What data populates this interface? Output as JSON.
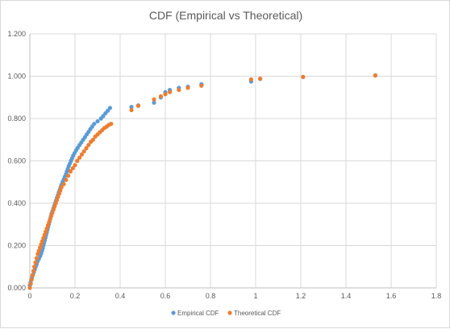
{
  "chart_data": {
    "type": "scatter",
    "title": "CDF (Empirical vs Theoretical)",
    "xlabel": "",
    "ylabel": "",
    "xlim": [
      0,
      1.8
    ],
    "ylim": [
      0,
      1.2
    ],
    "x_ticks": [
      "0",
      "0.2",
      "0.4",
      "0.6",
      "0.8",
      "1",
      "1.2",
      "1.4",
      "1.6",
      "1.8"
    ],
    "y_ticks": [
      "0.000",
      "0.200",
      "0.400",
      "0.600",
      "0.800",
      "1.000",
      "1.200"
    ],
    "grid": "vertical and horizontal",
    "legend_position": "bottom",
    "series": [
      {
        "name": "Empirical CDF",
        "color": "#5B9BD5",
        "points": [
          [
            0.0,
            0.012
          ],
          [
            0.003,
            0.025
          ],
          [
            0.006,
            0.037
          ],
          [
            0.01,
            0.05
          ],
          [
            0.014,
            0.062
          ],
          [
            0.018,
            0.075
          ],
          [
            0.022,
            0.087
          ],
          [
            0.026,
            0.1
          ],
          [
            0.03,
            0.112
          ],
          [
            0.034,
            0.125
          ],
          [
            0.04,
            0.137
          ],
          [
            0.046,
            0.15
          ],
          [
            0.05,
            0.162
          ],
          [
            0.054,
            0.175
          ],
          [
            0.057,
            0.187
          ],
          [
            0.06,
            0.2
          ],
          [
            0.063,
            0.212
          ],
          [
            0.066,
            0.225
          ],
          [
            0.069,
            0.237
          ],
          [
            0.072,
            0.25
          ],
          [
            0.075,
            0.262
          ],
          [
            0.078,
            0.275
          ],
          [
            0.081,
            0.287
          ],
          [
            0.084,
            0.3
          ],
          [
            0.087,
            0.312
          ],
          [
            0.09,
            0.325
          ],
          [
            0.093,
            0.337
          ],
          [
            0.096,
            0.35
          ],
          [
            0.1,
            0.362
          ],
          [
            0.104,
            0.375
          ],
          [
            0.108,
            0.387
          ],
          [
            0.112,
            0.4
          ],
          [
            0.116,
            0.412
          ],
          [
            0.12,
            0.425
          ],
          [
            0.124,
            0.437
          ],
          [
            0.128,
            0.45
          ],
          [
            0.132,
            0.462
          ],
          [
            0.136,
            0.475
          ],
          [
            0.14,
            0.487
          ],
          [
            0.145,
            0.5
          ],
          [
            0.15,
            0.512
          ],
          [
            0.155,
            0.525
          ],
          [
            0.16,
            0.537
          ],
          [
            0.164,
            0.55
          ],
          [
            0.168,
            0.562
          ],
          [
            0.172,
            0.575
          ],
          [
            0.177,
            0.587
          ],
          [
            0.182,
            0.6
          ],
          [
            0.187,
            0.612
          ],
          [
            0.192,
            0.625
          ],
          [
            0.198,
            0.637
          ],
          [
            0.205,
            0.65
          ],
          [
            0.212,
            0.662
          ],
          [
            0.22,
            0.675
          ],
          [
            0.228,
            0.687
          ],
          [
            0.236,
            0.7
          ],
          [
            0.244,
            0.712
          ],
          [
            0.252,
            0.725
          ],
          [
            0.26,
            0.737
          ],
          [
            0.268,
            0.75
          ],
          [
            0.276,
            0.762
          ],
          [
            0.285,
            0.775
          ],
          [
            0.3,
            0.787
          ],
          [
            0.315,
            0.8
          ],
          [
            0.325,
            0.812
          ],
          [
            0.335,
            0.825
          ],
          [
            0.345,
            0.837
          ],
          [
            0.355,
            0.85
          ],
          [
            0.45,
            0.855
          ],
          [
            0.48,
            0.862
          ],
          [
            0.55,
            0.875
          ],
          [
            0.58,
            0.9
          ],
          [
            0.6,
            0.925
          ],
          [
            0.62,
            0.935
          ],
          [
            0.66,
            0.945
          ],
          [
            0.7,
            0.95
          ],
          [
            0.76,
            0.962
          ],
          [
            0.98,
            0.975
          ],
          [
            1.02,
            0.987
          ],
          [
            1.21,
            0.996
          ],
          [
            1.53,
            1.004
          ]
        ]
      },
      {
        "name": "Theoretical CDF",
        "color": "#ED7D31",
        "points": [
          [
            0.0,
            0.0
          ],
          [
            0.004,
            0.02
          ],
          [
            0.008,
            0.04
          ],
          [
            0.012,
            0.06
          ],
          [
            0.016,
            0.08
          ],
          [
            0.02,
            0.1
          ],
          [
            0.025,
            0.12
          ],
          [
            0.03,
            0.14
          ],
          [
            0.035,
            0.16
          ],
          [
            0.04,
            0.175
          ],
          [
            0.045,
            0.19
          ],
          [
            0.05,
            0.205
          ],
          [
            0.055,
            0.22
          ],
          [
            0.06,
            0.235
          ],
          [
            0.065,
            0.25
          ],
          [
            0.07,
            0.265
          ],
          [
            0.075,
            0.28
          ],
          [
            0.08,
            0.295
          ],
          [
            0.085,
            0.31
          ],
          [
            0.09,
            0.325
          ],
          [
            0.095,
            0.34
          ],
          [
            0.1,
            0.355
          ],
          [
            0.105,
            0.37
          ],
          [
            0.11,
            0.385
          ],
          [
            0.115,
            0.4
          ],
          [
            0.12,
            0.415
          ],
          [
            0.125,
            0.43
          ],
          [
            0.13,
            0.445
          ],
          [
            0.135,
            0.46
          ],
          [
            0.14,
            0.475
          ],
          [
            0.15,
            0.49
          ],
          [
            0.16,
            0.51
          ],
          [
            0.17,
            0.53
          ],
          [
            0.18,
            0.55
          ],
          [
            0.19,
            0.565
          ],
          [
            0.2,
            0.58
          ],
          [
            0.21,
            0.6
          ],
          [
            0.22,
            0.615
          ],
          [
            0.23,
            0.63
          ],
          [
            0.24,
            0.645
          ],
          [
            0.25,
            0.66
          ],
          [
            0.26,
            0.675
          ],
          [
            0.27,
            0.69
          ],
          [
            0.28,
            0.7
          ],
          [
            0.29,
            0.715
          ],
          [
            0.3,
            0.725
          ],
          [
            0.31,
            0.735
          ],
          [
            0.32,
            0.745
          ],
          [
            0.33,
            0.755
          ],
          [
            0.34,
            0.762
          ],
          [
            0.35,
            0.77
          ],
          [
            0.36,
            0.775
          ],
          [
            0.45,
            0.84
          ],
          [
            0.48,
            0.86
          ],
          [
            0.55,
            0.89
          ],
          [
            0.58,
            0.905
          ],
          [
            0.6,
            0.915
          ],
          [
            0.62,
            0.925
          ],
          [
            0.66,
            0.935
          ],
          [
            0.7,
            0.945
          ],
          [
            0.76,
            0.955
          ],
          [
            0.98,
            0.985
          ],
          [
            1.02,
            0.988
          ],
          [
            1.21,
            0.997
          ],
          [
            1.53,
            1.003
          ]
        ]
      }
    ]
  }
}
